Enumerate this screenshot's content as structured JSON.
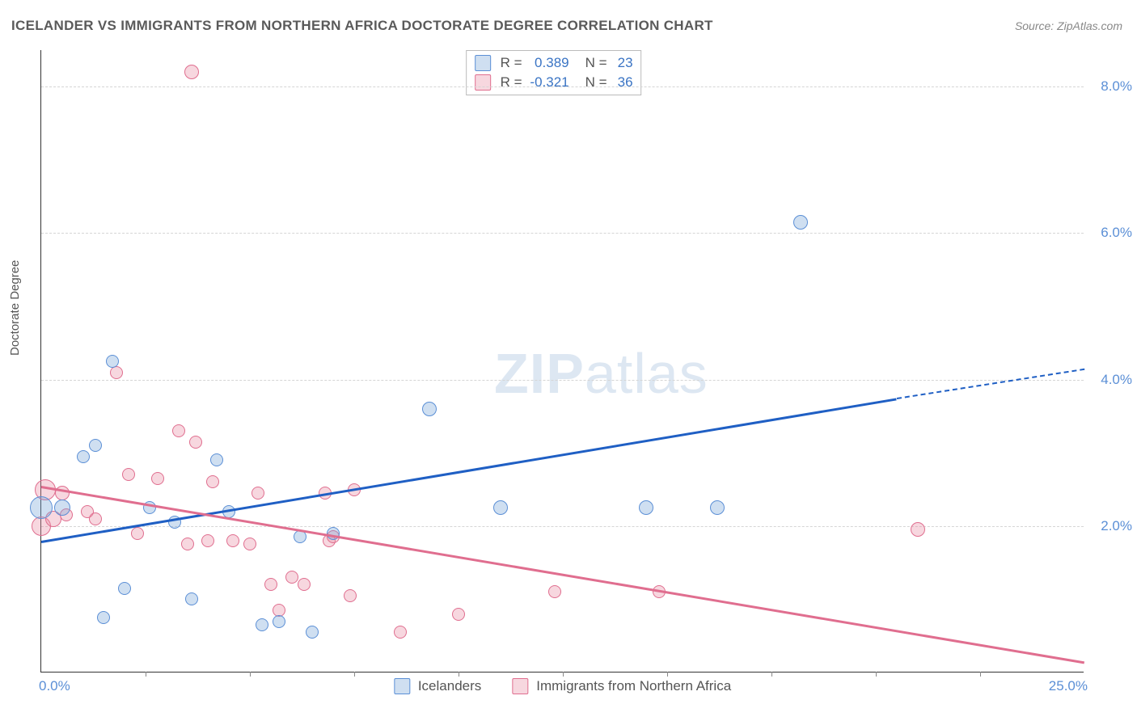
{
  "title": "ICELANDER VS IMMIGRANTS FROM NORTHERN AFRICA DOCTORATE DEGREE CORRELATION CHART",
  "source_label": "Source: ZipAtlas.com",
  "y_axis_label": "Doctorate Degree",
  "watermark": {
    "bold": "ZIP",
    "rest": "atlas"
  },
  "xlim": [
    0,
    25
  ],
  "ylim": [
    0,
    8.5
  ],
  "y_ticks": [
    {
      "value": 2.0,
      "label": "2.0%"
    },
    {
      "value": 4.0,
      "label": "4.0%"
    },
    {
      "value": 6.0,
      "label": "6.0%"
    },
    {
      "value": 8.0,
      "label": "8.0%"
    }
  ],
  "x_tick_marks": [
    2.5,
    5,
    7.5,
    10,
    12.5,
    15,
    17.5,
    20,
    22.5
  ],
  "x_min_label": "0.0%",
  "x_max_label": "25.0%",
  "series": {
    "blue": {
      "label": "Icelanders",
      "fill": "rgba(118,163,214,0.35)",
      "stroke": "#5b8fd6",
      "line_color": "#1f5fc4",
      "r_value": "0.389",
      "n_value": "23",
      "trend": {
        "x1": 0,
        "y1": 1.8,
        "x2": 20.5,
        "y2": 3.75,
        "x2_dash": 25,
        "y2_dash": 4.15
      },
      "points": [
        {
          "x": 0.0,
          "y": 2.25,
          "r": 14
        },
        {
          "x": 0.5,
          "y": 2.25,
          "r": 10
        },
        {
          "x": 1.3,
          "y": 3.1,
          "r": 8
        },
        {
          "x": 1.0,
          "y": 2.95,
          "r": 8
        },
        {
          "x": 1.7,
          "y": 4.25,
          "r": 8
        },
        {
          "x": 1.5,
          "y": 0.75,
          "r": 8
        },
        {
          "x": 2.0,
          "y": 1.15,
          "r": 8
        },
        {
          "x": 2.6,
          "y": 2.25,
          "r": 8
        },
        {
          "x": 3.2,
          "y": 2.05,
          "r": 8
        },
        {
          "x": 3.6,
          "y": 1.0,
          "r": 8
        },
        {
          "x": 4.2,
          "y": 2.9,
          "r": 8
        },
        {
          "x": 4.5,
          "y": 2.2,
          "r": 8
        },
        {
          "x": 5.3,
          "y": 0.65,
          "r": 8
        },
        {
          "x": 5.7,
          "y": 0.7,
          "r": 8
        },
        {
          "x": 6.2,
          "y": 1.85,
          "r": 8
        },
        {
          "x": 6.5,
          "y": 0.55,
          "r": 8
        },
        {
          "x": 7.0,
          "y": 1.9,
          "r": 8
        },
        {
          "x": 9.3,
          "y": 3.6,
          "r": 9
        },
        {
          "x": 11.0,
          "y": 2.25,
          "r": 9
        },
        {
          "x": 14.5,
          "y": 2.25,
          "r": 9
        },
        {
          "x": 16.2,
          "y": 2.25,
          "r": 9
        },
        {
          "x": 18.2,
          "y": 6.15,
          "r": 9
        }
      ]
    },
    "pink": {
      "label": "Immigrants from Northern Africa",
      "fill": "rgba(232,140,164,0.35)",
      "stroke": "#e06e8f",
      "line_color": "#e06e8f",
      "r_value": "-0.321",
      "n_value": "36",
      "trend": {
        "x1": 0,
        "y1": 2.55,
        "x2": 25,
        "y2": 0.15
      },
      "points": [
        {
          "x": 0.0,
          "y": 2.0,
          "r": 12
        },
        {
          "x": 0.1,
          "y": 2.5,
          "r": 13
        },
        {
          "x": 0.3,
          "y": 2.1,
          "r": 10
        },
        {
          "x": 0.5,
          "y": 2.45,
          "r": 9
        },
        {
          "x": 0.6,
          "y": 2.15,
          "r": 8
        },
        {
          "x": 1.1,
          "y": 2.2,
          "r": 8
        },
        {
          "x": 1.3,
          "y": 2.1,
          "r": 8
        },
        {
          "x": 1.8,
          "y": 4.1,
          "r": 8
        },
        {
          "x": 2.1,
          "y": 2.7,
          "r": 8
        },
        {
          "x": 2.3,
          "y": 1.9,
          "r": 8
        },
        {
          "x": 2.8,
          "y": 2.65,
          "r": 8
        },
        {
          "x": 3.3,
          "y": 3.3,
          "r": 8
        },
        {
          "x": 3.5,
          "y": 1.75,
          "r": 8
        },
        {
          "x": 3.6,
          "y": 8.2,
          "r": 9
        },
        {
          "x": 3.7,
          "y": 3.15,
          "r": 8
        },
        {
          "x": 4.0,
          "y": 1.8,
          "r": 8
        },
        {
          "x": 4.1,
          "y": 2.6,
          "r": 8
        },
        {
          "x": 4.6,
          "y": 1.8,
          "r": 8
        },
        {
          "x": 5.0,
          "y": 1.75,
          "r": 8
        },
        {
          "x": 5.2,
          "y": 2.45,
          "r": 8
        },
        {
          "x": 5.5,
          "y": 1.2,
          "r": 8
        },
        {
          "x": 5.7,
          "y": 0.85,
          "r": 8
        },
        {
          "x": 6.0,
          "y": 1.3,
          "r": 8
        },
        {
          "x": 6.3,
          "y": 1.2,
          "r": 8
        },
        {
          "x": 6.8,
          "y": 2.45,
          "r": 8
        },
        {
          "x": 6.9,
          "y": 1.8,
          "r": 8
        },
        {
          "x": 7.0,
          "y": 1.85,
          "r": 8
        },
        {
          "x": 7.4,
          "y": 1.05,
          "r": 8
        },
        {
          "x": 7.5,
          "y": 2.5,
          "r": 8
        },
        {
          "x": 8.6,
          "y": 0.55,
          "r": 8
        },
        {
          "x": 10.0,
          "y": 0.8,
          "r": 8
        },
        {
          "x": 12.3,
          "y": 1.1,
          "r": 8
        },
        {
          "x": 14.8,
          "y": 1.1,
          "r": 8
        },
        {
          "x": 21.0,
          "y": 1.95,
          "r": 9
        }
      ]
    }
  },
  "legend_stat_labels": {
    "R": "R =",
    "N": "N ="
  }
}
